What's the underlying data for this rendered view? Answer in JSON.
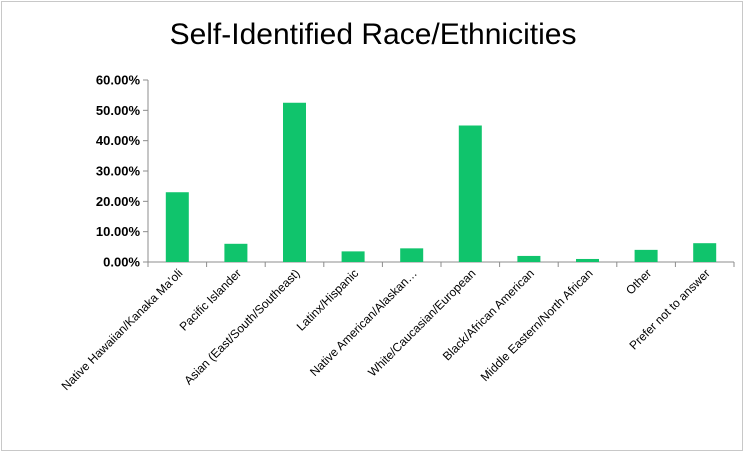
{
  "chart_data": {
    "type": "bar",
    "title": "Self-Identified Race/Ethnicities",
    "xlabel": "",
    "ylabel": "",
    "ylim": [
      0,
      0.6
    ],
    "yticks": [
      "0.00%",
      "10.00%",
      "20.00%",
      "30.00%",
      "40.00%",
      "50.00%",
      "60.00%"
    ],
    "grid": false,
    "legend": "none",
    "bar_color": "#10c46c",
    "categories": [
      "Native Hawaiian/Kanaka Ma’oli",
      "Pacific Islander",
      "Asian (East/South/Southeast)",
      "Latinx/Hispanic",
      "Native American/Alaskan…",
      "White/Caucasian/European",
      "Black/African American",
      "Middle Eastern/North African",
      "Other",
      "Prefer not to answer"
    ],
    "values": [
      0.23,
      0.06,
      0.525,
      0.035,
      0.045,
      0.45,
      0.02,
      0.01,
      0.04,
      0.062
    ]
  }
}
